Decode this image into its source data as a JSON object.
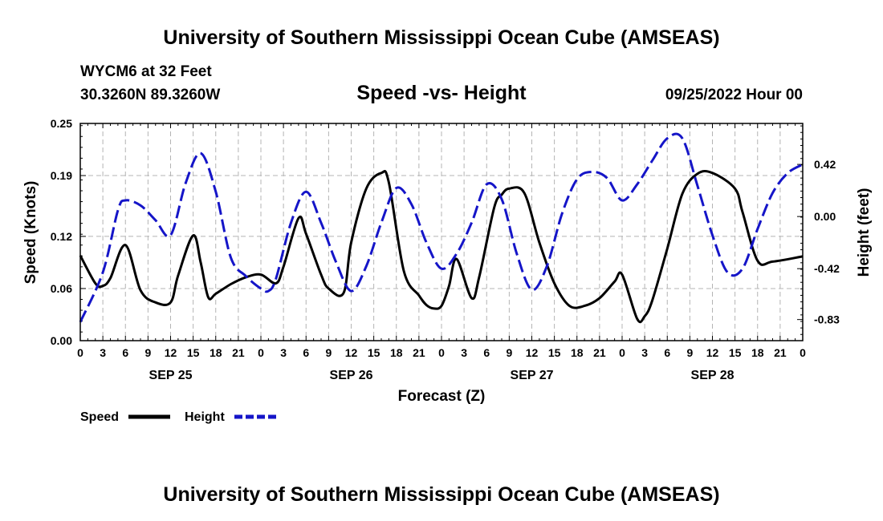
{
  "colors": {
    "speed": "#000000",
    "height": "#1515c8",
    "grid": "#b4b4b4"
  },
  "header": {
    "title": "University of Southern Mississippi Ocean Cube (AMSEAS)",
    "station": "WYCM6 at 32 Feet",
    "location": "30.3260N  89.3260W",
    "date": "09/25/2022 Hour 00",
    "footer_title": "University of Southern Mississippi Ocean Cube (AMSEAS)"
  },
  "chart_data": {
    "type": "line",
    "title": "Speed -vs- Height",
    "xlabel": "Forecast (Z)",
    "ylabel": "Speed (Knots)",
    "y2label": "Height (feet)",
    "xlim": [
      0,
      96
    ],
    "ylim": [
      0,
      0.25
    ],
    "y2lim": [
      -1.0,
      0.75
    ],
    "x_ticks": [
      0,
      3,
      6,
      9,
      12,
      15,
      18,
      21,
      24,
      27,
      30,
      33,
      36,
      39,
      42,
      45,
      48,
      51,
      54,
      57,
      60,
      63,
      66,
      69,
      72,
      75,
      78,
      81,
      84,
      87,
      90,
      93,
      96
    ],
    "x_tick_labels": [
      "0",
      "3",
      "6",
      "9",
      "12",
      "15",
      "18",
      "21",
      "0",
      "3",
      "6",
      "9",
      "12",
      "15",
      "18",
      "21",
      "0",
      "3",
      "6",
      "9",
      "12",
      "15",
      "18",
      "21",
      "0",
      "3",
      "6",
      "9",
      "12",
      "15",
      "18",
      "21",
      "0"
    ],
    "date_labels": [
      {
        "x": 12,
        "label": "SEP 25"
      },
      {
        "x": 36,
        "label": "SEP 26"
      },
      {
        "x": 60,
        "label": "SEP 27"
      },
      {
        "x": 84,
        "label": "SEP 28"
      }
    ],
    "y_ticks": [
      0.0,
      0.06,
      0.12,
      0.19,
      0.25
    ],
    "y_tick_labels": [
      "0.00",
      "0.06",
      "0.12",
      "0.19",
      "0.25"
    ],
    "y2_ticks": [
      0.42,
      0.0,
      -0.42,
      -0.83
    ],
    "y2_tick_labels": [
      "0.42",
      "0.00",
      "-0.42",
      "-0.83"
    ],
    "grid": true,
    "series": [
      {
        "name": "Speed",
        "axis": "left",
        "style": "solid",
        "x": [
          0,
          2,
          3,
          4,
          6,
          8,
          10,
          12,
          13,
          15,
          16,
          17,
          18,
          20,
          22,
          24,
          26,
          27,
          29,
          30,
          32,
          33,
          35,
          36,
          38,
          40,
          41,
          43,
          45,
          46,
          47,
          48,
          49,
          50,
          52,
          53,
          55,
          56,
          57,
          59,
          61,
          63,
          65,
          67,
          69,
          71,
          72,
          74,
          75,
          76,
          78,
          80,
          82,
          84,
          87,
          88,
          90,
          92,
          96
        ],
        "values": [
          0.098,
          0.066,
          0.063,
          0.072,
          0.11,
          0.058,
          0.044,
          0.044,
          0.075,
          0.121,
          0.09,
          0.05,
          0.054,
          0.065,
          0.073,
          0.076,
          0.066,
          0.085,
          0.141,
          0.123,
          0.076,
          0.06,
          0.055,
          0.113,
          0.175,
          0.193,
          0.182,
          0.08,
          0.052,
          0.041,
          0.037,
          0.04,
          0.063,
          0.094,
          0.049,
          0.073,
          0.153,
          0.168,
          0.175,
          0.17,
          0.113,
          0.066,
          0.04,
          0.04,
          0.049,
          0.068,
          0.076,
          0.025,
          0.028,
          0.046,
          0.106,
          0.169,
          0.192,
          0.193,
          0.175,
          0.148,
          0.092,
          0.091,
          0.097
        ]
      },
      {
        "name": "Height",
        "axis": "right",
        "style": "dashed",
        "x": [
          0,
          3,
          5,
          6,
          8,
          10,
          12,
          14,
          16,
          18,
          20,
          22,
          24,
          25,
          26,
          28,
          30,
          32,
          34,
          36,
          38,
          40,
          42,
          44,
          46,
          48,
          50,
          52,
          54,
          56,
          58,
          60,
          62,
          64,
          66,
          68,
          70,
          72,
          74,
          76,
          78,
          80,
          82,
          84,
          86,
          88,
          90,
          92,
          94,
          96
        ],
        "values": [
          -0.85,
          -0.45,
          0.05,
          0.13,
          0.09,
          -0.03,
          -0.15,
          0.27,
          0.51,
          0.2,
          -0.33,
          -0.48,
          -0.58,
          -0.6,
          -0.5,
          -0.05,
          0.2,
          -0.05,
          -0.37,
          -0.6,
          -0.4,
          -0.05,
          0.23,
          0.1,
          -0.21,
          -0.42,
          -0.3,
          -0.05,
          0.26,
          0.14,
          -0.3,
          -0.59,
          -0.4,
          0.02,
          0.3,
          0.36,
          0.31,
          0.13,
          0.26,
          0.45,
          0.63,
          0.63,
          0.25,
          -0.15,
          -0.45,
          -0.42,
          -0.1,
          0.19,
          0.35,
          0.42
        ]
      }
    ],
    "legend": [
      {
        "label": "Speed",
        "style": "solid"
      },
      {
        "label": "Height",
        "style": "dashed"
      }
    ]
  }
}
